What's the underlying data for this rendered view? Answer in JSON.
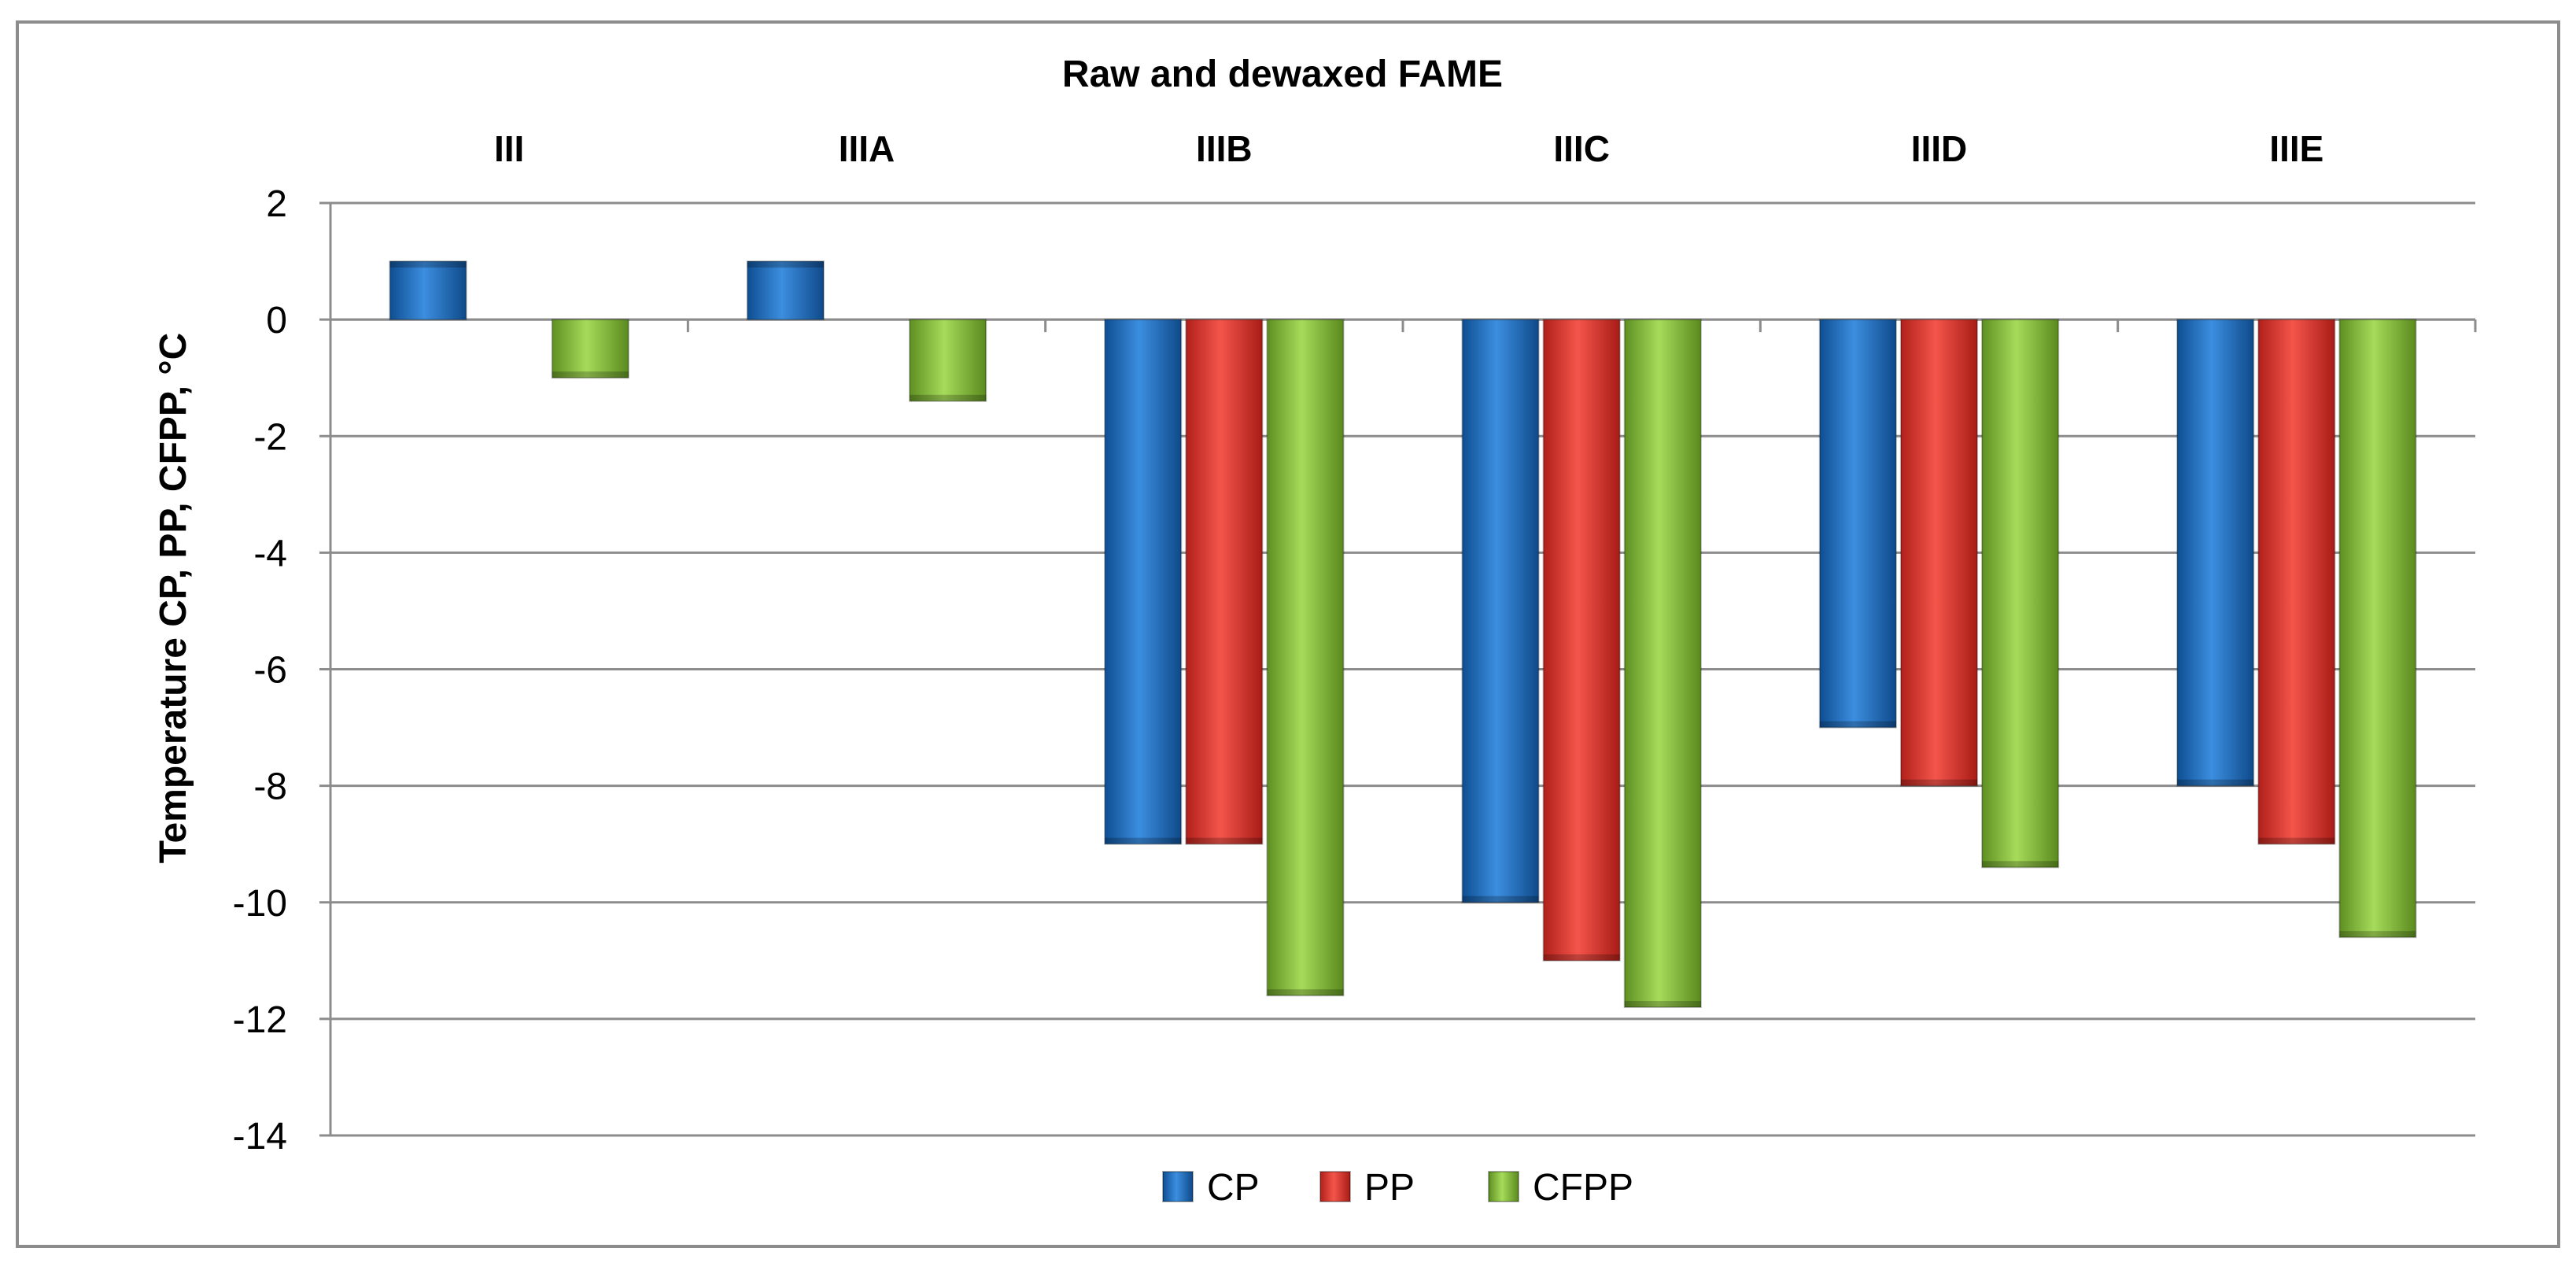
{
  "chart_data": {
    "type": "bar",
    "title": "Raw and dewaxed FAME",
    "xlabel": "",
    "ylabel": "Temperature CP, PP, CFPP, °C",
    "categories": [
      "III",
      "IIIA",
      "IIIB",
      "IIIC",
      "IIID",
      "IIIE"
    ],
    "ylim": [
      -14,
      2
    ],
    "yticks": [
      2,
      0,
      -2,
      -4,
      -6,
      -8,
      -10,
      -12,
      -14
    ],
    "grid": true,
    "legend_position": "bottom",
    "series": [
      {
        "name": "CP",
        "color": "#1F6FC0",
        "values": [
          1,
          1,
          -9,
          -10,
          -7,
          -8
        ]
      },
      {
        "name": "PP",
        "color": "#E8382F",
        "values": [
          null,
          null,
          -9,
          -11,
          -8,
          -9
        ]
      },
      {
        "name": "CFPP",
        "color": "#8CC63F",
        "values": [
          -1,
          -1.4,
          -11.6,
          -11.8,
          -9.4,
          -10.6
        ]
      }
    ]
  }
}
